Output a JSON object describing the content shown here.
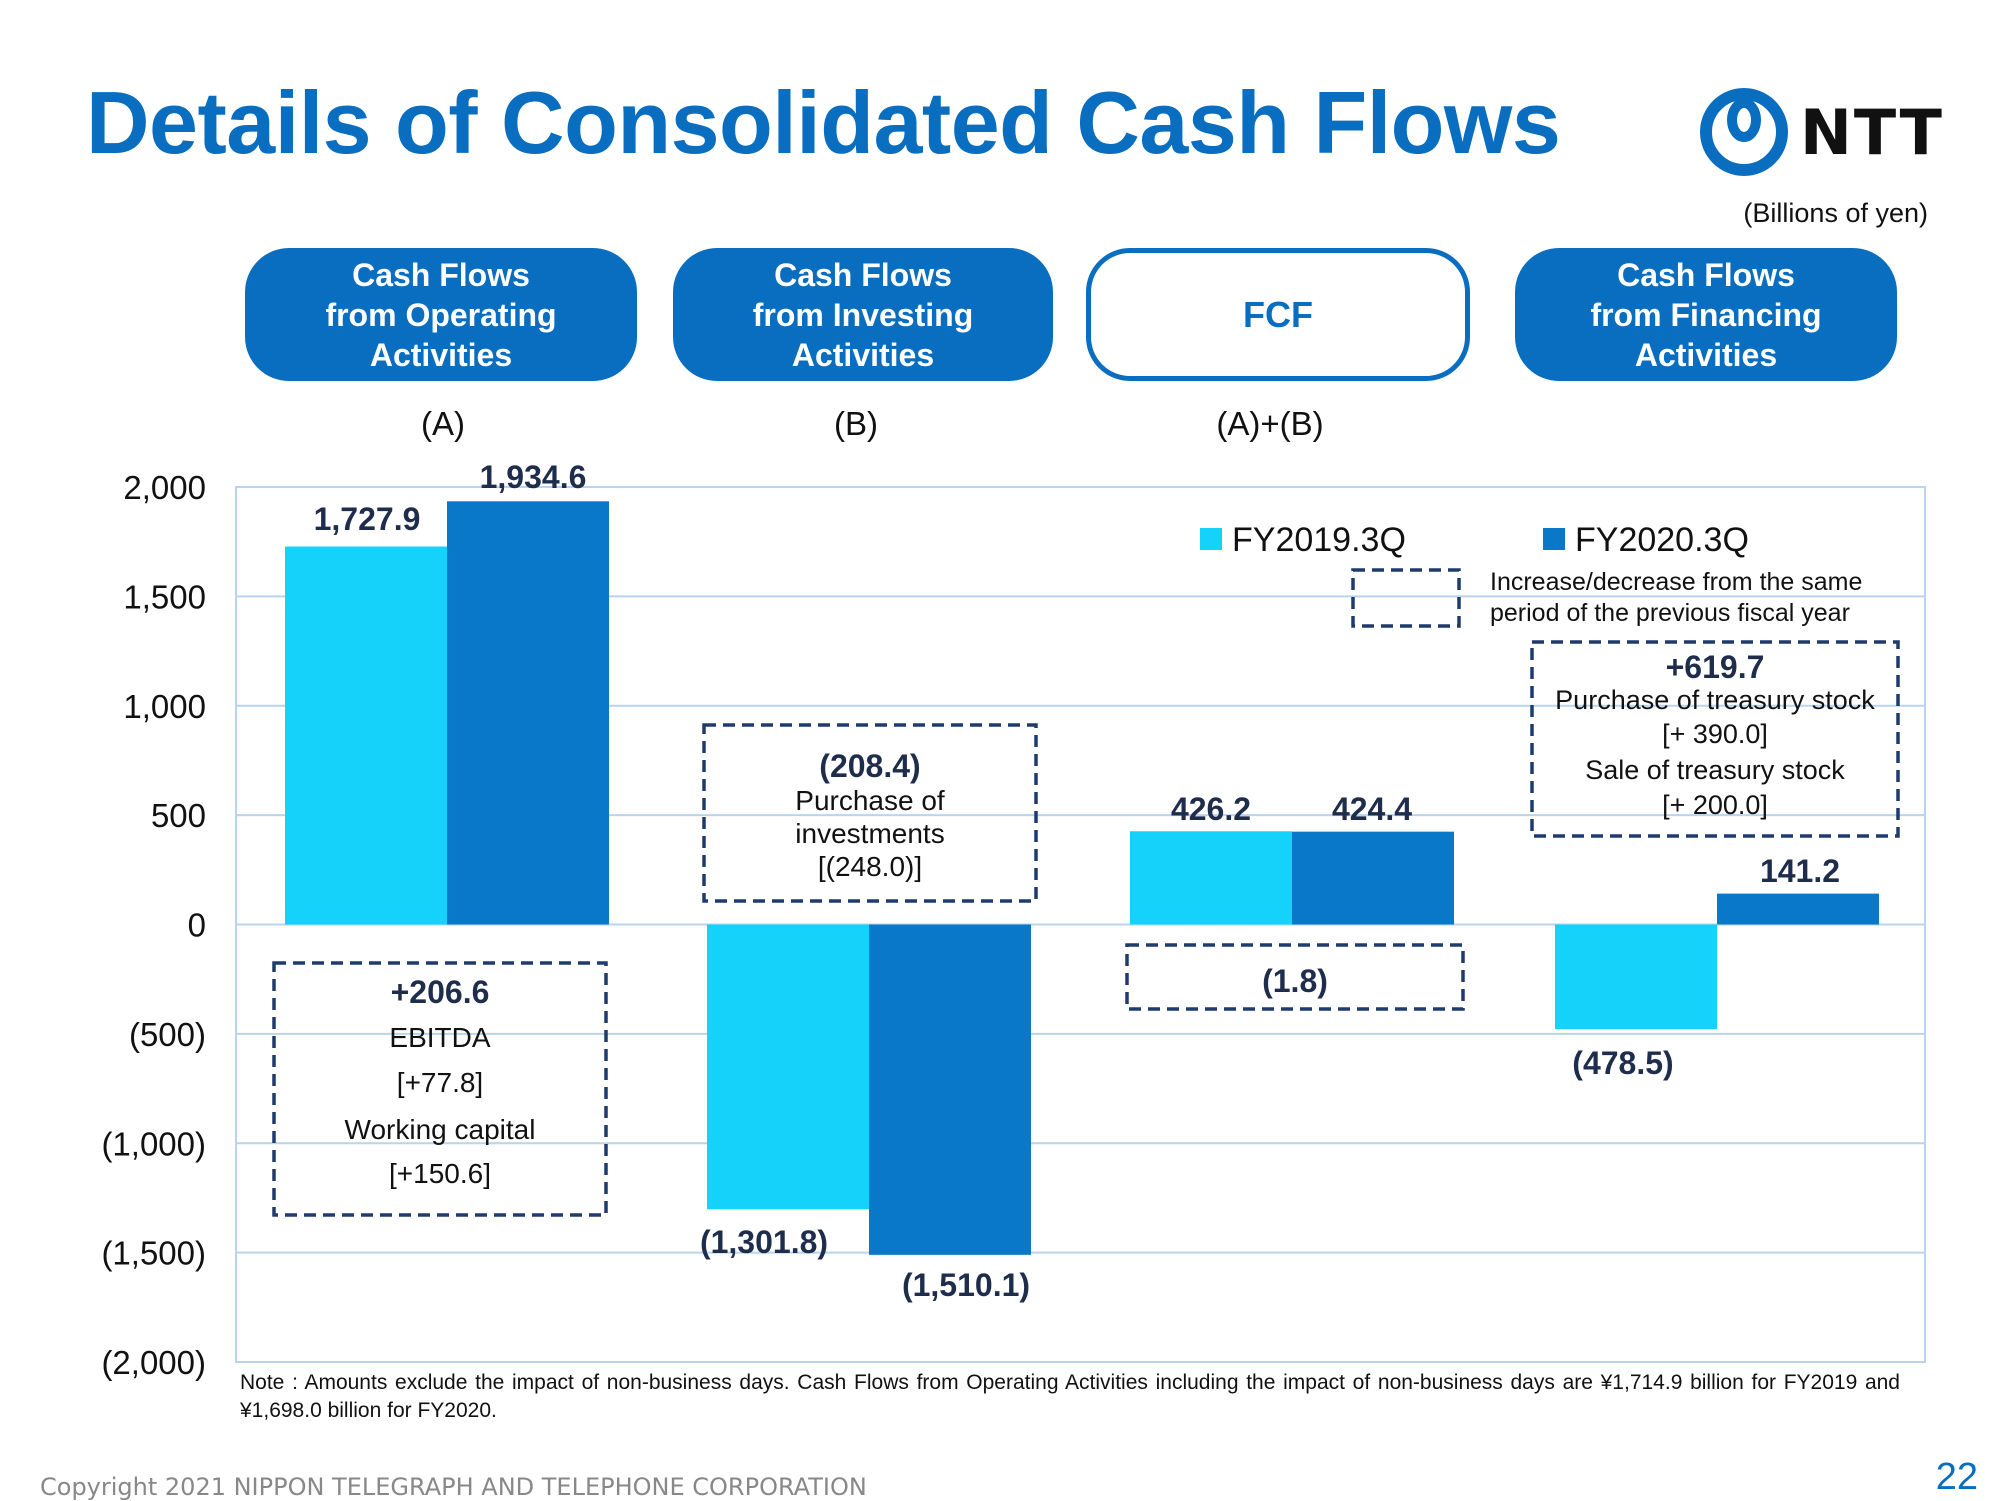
{
  "title": "Details of Consolidated Cash Flows",
  "logo_text": "NTT",
  "units": "(Billions of yen)",
  "headers": [
    {
      "label": "Cash Flows\nfrom Operating\nActivities",
      "sub": "(A)"
    },
    {
      "label": "Cash Flows\nfrom Investing\nActivities",
      "sub": "(B)"
    },
    {
      "label": "FCF",
      "sub": "(A)+(B)"
    },
    {
      "label": "Cash Flows\nfrom Financing\nActivities",
      "sub": ""
    }
  ],
  "chart_data": {
    "type": "bar",
    "categories": [
      "Cash Flows from Operating Activities",
      "Cash Flows from Investing Activities",
      "FCF",
      "Cash Flows from Financing Activities"
    ],
    "series": [
      {
        "name": "FY2019.3Q",
        "color": "#15d2fb",
        "values": [
          1727.9,
          -1301.8,
          426.2,
          -478.5
        ],
        "labels": [
          "1,727.9",
          "(1,301.8)",
          "426.2",
          "(478.5)"
        ]
      },
      {
        "name": "FY2020.3Q",
        "color": "#0a78c8",
        "values": [
          1934.6,
          -1510.1,
          424.4,
          141.2
        ],
        "labels": [
          "1,934.6",
          "(1,510.1)",
          "424.4",
          "141.2"
        ]
      }
    ],
    "ylim": [
      -2000,
      2000
    ],
    "yticks": [
      2000,
      1500,
      1000,
      500,
      0,
      -500,
      -1000,
      -1500,
      -2000
    ],
    "ytick_labels": [
      "2,000",
      "1,500",
      "1,000",
      "500",
      "0",
      "(500)",
      "(1,000)",
      "(1,500)",
      "(2,000)"
    ],
    "grid": true,
    "legend_position": "top-right",
    "legend_note": "Increase/decrease from the same\nperiod of the previous fiscal year",
    "annotations": [
      {
        "category": 0,
        "lines": [
          "+206.6",
          "EBITDA",
          "[+77.8]",
          "Working capital",
          "[+150.6]"
        ]
      },
      {
        "category": 1,
        "lines": [
          "(208.4)",
          "Purchase of",
          "investments",
          "[(248.0)]"
        ]
      },
      {
        "category": 2,
        "lines": [
          "(1.8)"
        ]
      },
      {
        "category": 3,
        "lines": [
          "+619.7",
          "Purchase of treasury stock",
          "[+ 390.0]",
          "Sale of treasury stock",
          "[+ 200.0]"
        ]
      }
    ]
  },
  "footer_note": "Note : Amounts exclude the impact of non-business days. Cash Flows from Operating Activities including the impact of non-business days are ¥1,714.9 billion for FY2019 and ¥1,698.0 billion for FY2020.",
  "copyright": "Copyright 2021 NIPPON TELEGRAPH AND TELEPHONE CORPORATION",
  "page_number": "22",
  "colors": {
    "accent": "#0a6ec0",
    "note_border": "#1f3b6e"
  }
}
